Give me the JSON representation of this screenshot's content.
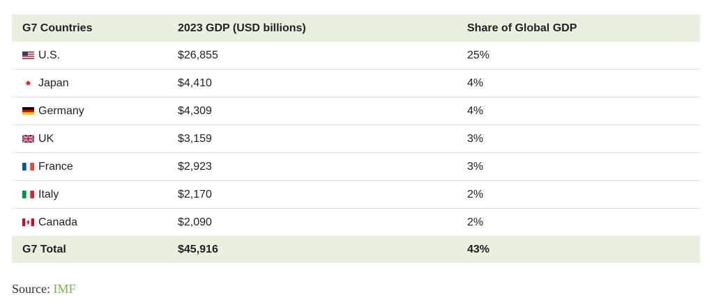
{
  "table": {
    "header": [
      "G7 Countries",
      "2023 GDP (USD billions)",
      "Share of Global GDP"
    ],
    "rows": [
      [
        "U.S.",
        "$26,855",
        "25%"
      ],
      [
        "Japan",
        "$4,410",
        "4%"
      ],
      [
        "Germany",
        "$4,309",
        "4%"
      ],
      [
        "UK",
        "$3,159",
        "3%"
      ],
      [
        "France",
        "$2,923",
        "3%"
      ],
      [
        "Italy",
        "$2,170",
        "2%"
      ],
      [
        "Canada",
        "$2,090",
        "2%"
      ]
    ],
    "total": [
      "G7 Total",
      "$45,916",
      "43%"
    ]
  },
  "source": {
    "label": "Source:",
    "link": "IMF"
  }
}
